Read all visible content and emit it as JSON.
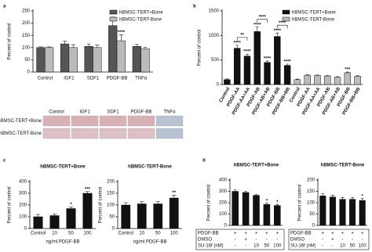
{
  "chart_data": [
    {
      "type": "bar",
      "panel": "a",
      "ylabel": "Percent of control",
      "categories": [
        "Control",
        "IGF1",
        "SDF1",
        "PDGF-BB",
        "TNFα"
      ],
      "series": [
        {
          "name": "hBMSC-TERT+Bone",
          "color": "#555555",
          "values": [
            100,
            115,
            105,
            190,
            105
          ],
          "errors": [
            3,
            12,
            10,
            35,
            8
          ],
          "significance": [
            null,
            null,
            null,
            "****",
            null
          ]
        },
        {
          "name": "hBMSC-TERT-Bone",
          "color": "#bbbbbb",
          "values": [
            100,
            100,
            100,
            128,
            95
          ],
          "errors": [
            3,
            12,
            10,
            25,
            6
          ],
          "significance": [
            null,
            null,
            null,
            "****",
            null
          ]
        }
      ],
      "ylim": [
        0,
        250
      ],
      "yticks": [
        0,
        50,
        100,
        150,
        200,
        250
      ],
      "legend": "upper right",
      "image_rows": [
        "hBMSC-TERT+Bone",
        "hBMSC-TERT-Bone"
      ]
    },
    {
      "type": "bar",
      "panel": "b",
      "ylabel": "Percent of control",
      "categories": [
        "Control",
        "PDGF-AA",
        "PDGF-AA+AA",
        "PDGF-AB",
        "PDGF-AB+AB",
        "PDGF-BB",
        "PDGF-BB+BB",
        "Control",
        "PDGF-AA",
        "PDGF-AA+AA",
        "PDGF-AB",
        "PDGF-AB+AB",
        "PDGF-BB",
        "PDGF-BB+BB"
      ],
      "series": [
        {
          "name": "hBMSC-TERT+Bone",
          "color": "#111111",
          "values": [
            100,
            740,
            580,
            1080,
            450,
            980,
            390,
            null,
            null,
            null,
            null,
            null,
            null,
            null
          ],
          "errors": [
            15,
            60,
            40,
            90,
            30,
            70,
            25,
            null,
            null,
            null,
            null,
            null,
            null,
            null
          ],
          "significance": [
            null,
            "****",
            "****",
            "****",
            "****",
            "****",
            "****",
            null,
            null,
            null,
            null,
            null,
            null,
            null
          ]
        },
        {
          "name": "hBMSC-TERT-Bone",
          "color": "#bbbbbb",
          "values": [
            null,
            null,
            null,
            null,
            null,
            null,
            null,
            100,
            190,
            185,
            175,
            150,
            240,
            170
          ],
          "errors": [
            null,
            null,
            null,
            null,
            null,
            null,
            null,
            10,
            10,
            10,
            10,
            10,
            15,
            10
          ],
          "significance": [
            null,
            null,
            null,
            null,
            null,
            null,
            null,
            null,
            null,
            null,
            null,
            null,
            "***",
            null
          ]
        }
      ],
      "ylim": [
        0,
        1500
      ],
      "yticks": [
        0,
        500,
        1000,
        1500
      ],
      "legend": "upper right",
      "comparisons": [
        {
          "text": "**",
          "from": 1,
          "to": 2
        },
        {
          "text": "****",
          "from": 3,
          "to": 4
        },
        {
          "text": "****",
          "from": 5,
          "to": 6
        }
      ]
    },
    {
      "type": "bar",
      "panel": "c",
      "title": "hBMSC-TERT+Bone",
      "ylabel": "Percent of control",
      "xlabel": "ng/ml PDGF-BB",
      "categories": [
        "Control",
        "10",
        "50",
        "100"
      ],
      "series": [
        {
          "color": "#111111",
          "values": [
            100,
            110,
            170,
            300
          ],
          "errors": [
            20,
            15,
            15,
            15
          ],
          "significance": [
            null,
            null,
            "*",
            "***"
          ]
        }
      ],
      "ylim": [
        0,
        400
      ],
      "yticks": [
        0,
        100,
        200,
        300,
        400
      ]
    },
    {
      "type": "bar",
      "title": "hBMSC-TERT-Bone",
      "ylabel": "Percent of control",
      "xlabel": "ng/ml PDGF-BB",
      "categories": [
        "Control",
        "10",
        "50",
        "100"
      ],
      "series": [
        {
          "color": "#111111",
          "values": [
            100,
            105,
            105,
            130
          ],
          "errors": [
            10,
            10,
            10,
            12
          ],
          "significance": [
            null,
            null,
            null,
            "**"
          ]
        }
      ],
      "ylim": [
        0,
        200
      ],
      "yticks": [
        0,
        50,
        100,
        150,
        200
      ]
    },
    {
      "type": "bar",
      "panel": "d",
      "title": "hBMSC-TERT+Bone",
      "ylabel": "Percent of control",
      "series": [
        {
          "color": "#111111",
          "values": [
            300,
            290,
            265,
            185,
            175
          ],
          "errors": [
            12,
            10,
            10,
            10,
            10
          ],
          "significance": [
            null,
            null,
            null,
            "*",
            "*"
          ]
        }
      ],
      "ylim": [
        0,
        400
      ],
      "yticks": [
        0,
        100,
        200,
        300,
        400
      ],
      "treatments": [
        {
          "label": "PDGF-BB",
          "values": [
            "+",
            "+",
            "+",
            "+",
            "+"
          ]
        },
        {
          "label": "DMSO",
          "values": [
            "-",
            "+",
            "-",
            "-",
            "-"
          ]
        },
        {
          "label": "SU-16f (nM)",
          "values": [
            "-",
            "-",
            10,
            50,
            100
          ]
        }
      ]
    },
    {
      "type": "bar",
      "title": "hBMSC-TERT-Bone",
      "ylabel": "Percent of control",
      "series": [
        {
          "color": "#111111",
          "values": [
            130,
            125,
            115,
            115,
            110
          ],
          "errors": [
            10,
            8,
            8,
            8,
            8
          ],
          "significance": [
            null,
            null,
            null,
            null,
            "*"
          ]
        }
      ],
      "ylim": [
        0,
        200
      ],
      "yticks": [
        0,
        50,
        100,
        150,
        200
      ],
      "treatments": [
        {
          "label": "PDGF-BB",
          "values": [
            "+",
            "+",
            "+",
            "+",
            "+"
          ]
        },
        {
          "label": "DMSO",
          "values": [
            "-",
            "+",
            "-",
            "-",
            "-"
          ]
        },
        {
          "label": "SU-16f (nM)",
          "values": [
            "-",
            "-",
            10,
            50,
            100
          ]
        }
      ]
    }
  ]
}
